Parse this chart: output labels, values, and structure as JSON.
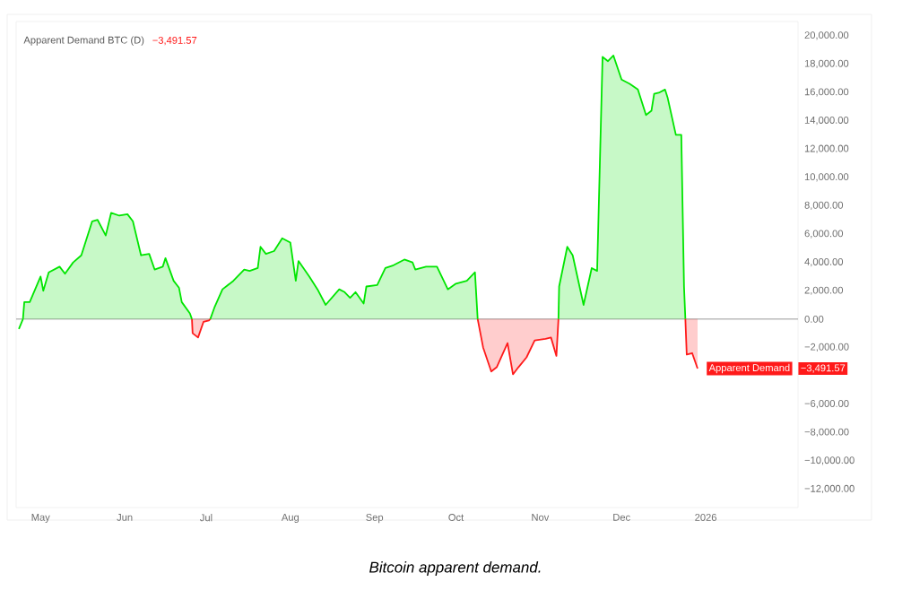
{
  "chart_data": {
    "type": "area",
    "title": "Apparent Demand BTC (D)",
    "xlim": [
      "2025-04-22",
      "2026-02-04"
    ],
    "ylim": [
      -13300,
      21000
    ],
    "xticks": [
      {
        "value": "2025-05-01",
        "label": "May"
      },
      {
        "value": "2025-06-01",
        "label": "Jun"
      },
      {
        "value": "2025-07-01",
        "label": "Jul"
      },
      {
        "value": "2025-08-01",
        "label": "Aug"
      },
      {
        "value": "2025-09-01",
        "label": "Sep"
      },
      {
        "value": "2025-10-01",
        "label": "Oct"
      },
      {
        "value": "2025-11-01",
        "label": "Nov"
      },
      {
        "value": "2025-12-01",
        "label": "Dec"
      },
      {
        "value": "2026-01-01",
        "label": "2026"
      }
    ],
    "yticks": [
      {
        "value": 20000,
        "label": "20,000.00"
      },
      {
        "value": 18000,
        "label": "18,000.00"
      },
      {
        "value": 16000,
        "label": "16,000.00"
      },
      {
        "value": 14000,
        "label": "14,000.00"
      },
      {
        "value": 12000,
        "label": "12,000.00"
      },
      {
        "value": 10000,
        "label": "10,000.00"
      },
      {
        "value": 8000,
        "label": "8,000.00"
      },
      {
        "value": 6000,
        "label": "6,000.00"
      },
      {
        "value": 4000,
        "label": "4,000.00"
      },
      {
        "value": 2000,
        "label": "2,000.00"
      },
      {
        "value": 0,
        "label": "0.00"
      },
      {
        "value": -2000,
        "label": "−2,000.00"
      },
      {
        "value": -6000,
        "label": "−6,000.00"
      },
      {
        "value": -8000,
        "label": "−8,000.00"
      },
      {
        "value": -10000,
        "label": "−10,000.00"
      },
      {
        "value": -12000,
        "label": "−12,000.00"
      }
    ],
    "grid": false,
    "legend": "right",
    "series": [
      {
        "color": "#00e500",
        "x": [
          "2025-04-24T12:00",
          "2025-04-25",
          "2025-04-27",
          "2025-05-01",
          "2025-05-02",
          "2025-05-04",
          "2025-05-08",
          "2025-05-10",
          "2025-05-13",
          "2025-05-16",
          "2025-05-20",
          "2025-05-22",
          "2025-05-25",
          "2025-05-27",
          "2025-05-30",
          "2025-06-02",
          "2025-06-04",
          "2025-06-07",
          "2025-06-10",
          "2025-06-12",
          "2025-06-15",
          "2025-06-16",
          "2025-06-19",
          "2025-06-21",
          "2025-06-22",
          "2025-06-25",
          "2025-06-25T18:00",
          "2025-06-28",
          "2025-07-02T12:00",
          "2025-07-04",
          "2025-07-07",
          "2025-07-11",
          "2025-07-15",
          "2025-07-17",
          "2025-07-20",
          "2025-07-21",
          "2025-07-23",
          "2025-07-26",
          "2025-07-29",
          "2025-08-01",
          "2025-08-03",
          "2025-08-04",
          "2025-08-08",
          "2025-08-11",
          "2025-08-14",
          "2025-08-19",
          "2025-08-21",
          "2025-08-23",
          "2025-08-25",
          "2025-08-28",
          "2025-08-29",
          "2025-09-02",
          "2025-09-05",
          "2025-09-08",
          "2025-09-12",
          "2025-09-15",
          "2025-09-16",
          "2025-09-20",
          "2025-09-24",
          "2025-09-28",
          "2025-10-01",
          "2025-10-05",
          "2025-10-08",
          "2025-10-09",
          "2025-10-20",
          "2025-11-07T18:00",
          "2025-11-08",
          "2025-11-11",
          "2025-11-13",
          "2025-11-17",
          "2025-11-20",
          "2025-11-22",
          "2025-11-24",
          "2025-11-26",
          "2025-11-28",
          "2025-12-01",
          "2025-12-04",
          "2025-12-07",
          "2025-12-10",
          "2025-12-12",
          "2025-12-13",
          "2025-12-15",
          "2025-12-17",
          "2025-12-18",
          "2025-12-21",
          "2025-12-23",
          "2025-12-24",
          "2025-12-24T12:00"
        ],
        "values": [
          0,
          1200,
          1200,
          3000,
          2000,
          3300,
          3700,
          3200,
          4000,
          4500,
          6900,
          7000,
          5900,
          7500,
          7300,
          7400,
          6900,
          4500,
          4600,
          3500,
          3700,
          4300,
          2700,
          2200,
          1200,
          400,
          0,
          null,
          0,
          800,
          2100,
          2700,
          3500,
          3400,
          3600,
          5100,
          4600,
          4800,
          5700,
          5400,
          2700,
          4100,
          3000,
          2100,
          1000,
          2100,
          1900,
          1500,
          1900,
          1100,
          2300,
          2400,
          3600,
          3800,
          4200,
          4000,
          3500,
          3700,
          3700,
          2100,
          2500,
          2700,
          3300,
          0,
          null,
          0,
          2300,
          5100,
          4500,
          1000,
          3600,
          3400,
          18500,
          18200,
          18600,
          16900,
          16600,
          16200,
          14400,
          14700,
          15900,
          16000,
          16200,
          15600,
          13000,
          13000,
          2300,
          0
        ]
      },
      {
        "name": "Apparent Demand",
        "color": "#ff1a1a",
        "x": [
          "2025-06-25T18:00",
          "2025-06-26",
          "2025-06-28",
          "2025-06-30",
          "2025-07-02",
          "2025-07-02T12:00",
          "2025-08-01",
          "2025-10-09",
          "2025-10-11",
          "2025-10-14",
          "2025-10-16",
          "2025-10-20",
          "2025-10-22",
          "2025-10-24",
          "2025-10-27",
          "2025-10-30",
          "2025-11-03",
          "2025-11-05",
          "2025-11-07",
          "2025-11-07T18:00",
          "2025-11-24",
          "2025-12-24T12:00",
          "2025-12-25",
          "2025-12-27",
          "2025-12-29"
        ],
        "values": [
          0,
          -1000,
          -1300,
          -200,
          -100,
          0,
          null,
          0,
          -2000,
          -3700,
          -3400,
          -1700,
          -3900,
          -3400,
          -2700,
          -1500,
          -1400,
          -1300,
          -2600,
          0,
          null,
          0,
          -2500,
          -2400,
          -3491.57
        ]
      },
      {
        "type": "line",
        "color": "#00e500",
        "x": [
          "2025-04-23",
          "2025-04-24T12:00"
        ],
        "values": [
          -700,
          0
        ]
      }
    ],
    "ref_lines": [
      {
        "axis": "y",
        "value": 0,
        "color": "#999999"
      }
    ],
    "annotations": [
      "−3,491.57",
      "−3,491.57",
      "Bitcoin apparent demand."
    ]
  }
}
